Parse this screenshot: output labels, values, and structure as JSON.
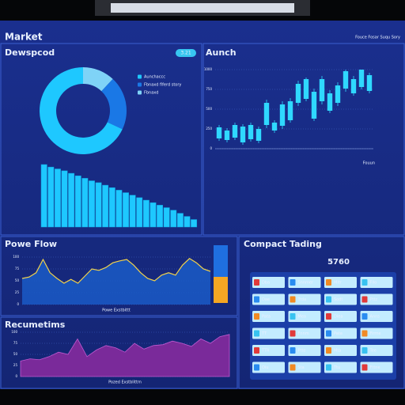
{
  "header": {
    "title": "Market",
    "links": "Fouce Fosar Suqu Sory"
  },
  "chart_data": [
    {
      "type": "pie",
      "title": "Dewspcod",
      "badge": "3.21",
      "categories": [
        "Fbnaxd",
        "Fbnaxd fiferd story",
        "Aunchaccc"
      ],
      "values": [
        12,
        20,
        68
      ],
      "colors": [
        "#7fd3f7",
        "#1a78e6",
        "#1ec8ff"
      ]
    },
    {
      "type": "bar",
      "values": [
        100,
        96,
        93,
        90,
        86,
        82,
        78,
        74,
        71,
        67,
        63,
        59,
        55,
        51,
        47,
        43,
        39,
        35,
        31,
        27,
        22,
        17,
        12
      ],
      "color": "#1ec8ff"
    },
    {
      "type": "candlestick",
      "title": "Aunch",
      "legend": "Fouun",
      "open": [
        130,
        110,
        140,
        80,
        120,
        100,
        300,
        230,
        290,
        360,
        580,
        630,
        380,
        600,
        480,
        580,
        760,
        700,
        780,
        730
      ],
      "close": [
        270,
        230,
        300,
        280,
        300,
        250,
        580,
        330,
        560,
        600,
        820,
        880,
        720,
        880,
        700,
        800,
        980,
        880,
        1000,
        930
      ],
      "high": [
        300,
        260,
        330,
        310,
        330,
        280,
        620,
        360,
        600,
        640,
        860,
        900,
        760,
        920,
        740,
        840,
        1000,
        920,
        1000,
        960
      ],
      "low": [
        100,
        80,
        110,
        50,
        90,
        70,
        260,
        200,
        250,
        330,
        540,
        600,
        350,
        560,
        450,
        540,
        720,
        670,
        750,
        700
      ],
      "ylim": [
        0,
        1000
      ],
      "yticks": [
        0,
        250,
        500,
        750,
        1000
      ],
      "color": "#2fd8ff"
    },
    {
      "type": "line",
      "title": "Powe Flow",
      "xlabel": "Powe Exstbittt",
      "values": [
        55,
        58,
        67,
        95,
        67,
        55,
        45,
        53,
        45,
        60,
        75,
        72,
        78,
        88,
        92,
        95,
        83,
        67,
        55,
        50,
        62,
        67,
        62,
        83,
        97,
        88,
        75,
        70
      ],
      "ylim": [
        0,
        100
      ],
      "yticks": [
        0,
        25,
        50,
        75,
        100
      ],
      "color": "#f2d14a",
      "fill": "#1a5bc7"
    },
    {
      "type": "area",
      "title": "Recumetims",
      "xlabel": "Pozed Exstblittm",
      "values": [
        35,
        40,
        38,
        45,
        55,
        50,
        85,
        45,
        60,
        70,
        65,
        55,
        75,
        62,
        70,
        72,
        80,
        75,
        68,
        85,
        75,
        90,
        95
      ],
      "ylim": [
        0,
        100
      ],
      "yticks": [
        0,
        25,
        50,
        75,
        100
      ],
      "color": "#7a2a9a"
    }
  ],
  "trading": {
    "title": "Compact Tading",
    "price": "5760",
    "cells": [
      [
        "Dba",
        "Snnmer",
        "Mitr",
        "Fllo"
      ],
      [
        "Dae",
        "Trda",
        "Sodt",
        "Pttz"
      ],
      [
        "Pata",
        "Mea",
        "Diea",
        "Anns"
      ],
      [
        "TT",
        "Fnnm",
        "Pate",
        "Firrne"
      ],
      [
        "TTR",
        "Ptte",
        "Mta",
        "Tee"
      ],
      [
        "Oiu",
        "Sta",
        "Ttu",
        "Fttne"
      ]
    ]
  }
}
